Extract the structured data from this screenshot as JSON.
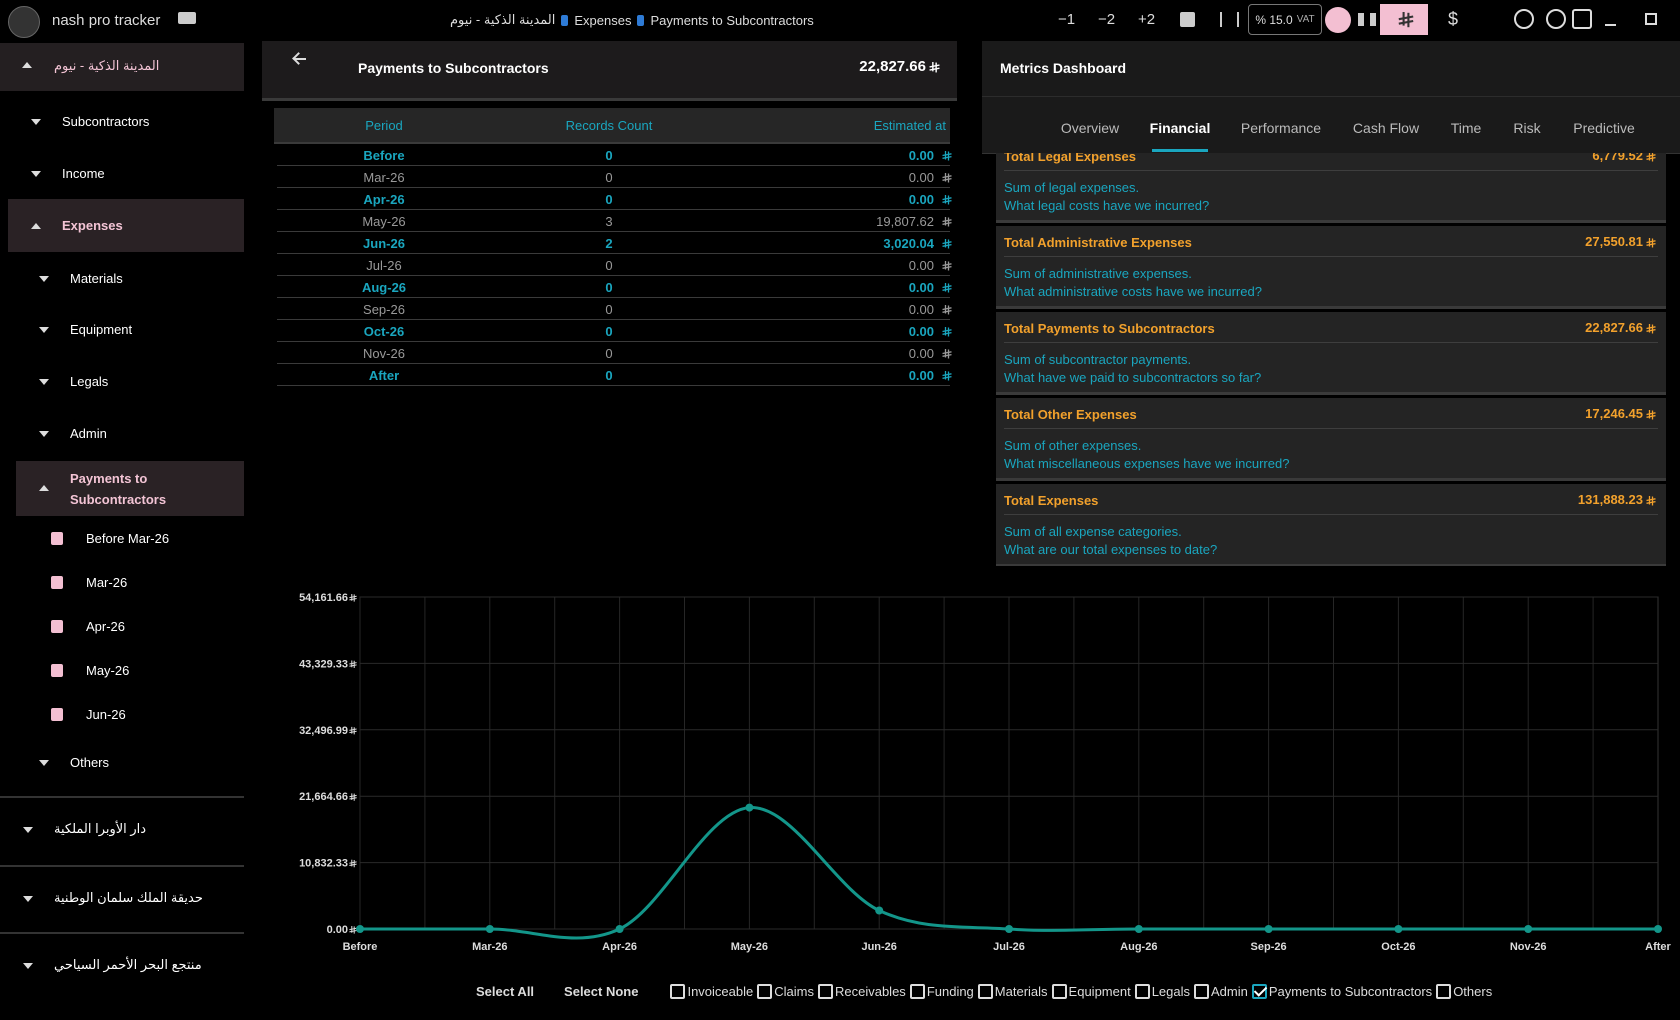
{
  "app": {
    "name": "nash pro tracker",
    "breadcrumb": [
      "المدينة الذكية - نيوم",
      "Expenses",
      "Payments to Subcontractors"
    ],
    "steps": [
      "−1",
      "−2",
      "+2"
    ],
    "vat": "% 15.0",
    "vat_label": "VAT",
    "currency": "$"
  },
  "sidebar": {
    "project": "المدينة الذكية - نيوم",
    "items": [
      "Subcontractors",
      "Income",
      "Expenses",
      "Materials",
      "Equipment",
      "Legals",
      "Admin",
      "Payments to Subcontractors",
      "Before Mar-26",
      "Mar-26",
      "Apr-26",
      "May-26",
      "Jun-26",
      "Others"
    ],
    "projects": [
      "دار الأوبرا الملكية",
      "حديقة الملك سلمان الوطنية",
      "منتجع البحر الأحمر السياحي"
    ]
  },
  "detail": {
    "title": "Payments to Subcontractors",
    "total": "22,827.66",
    "table": {
      "headers": [
        "Period",
        "Records Count",
        "Estimated at"
      ],
      "rows": [
        [
          "Before",
          "0",
          "0.00"
        ],
        [
          "Mar-26",
          "0",
          "0.00"
        ],
        [
          "Apr-26",
          "0",
          "0.00"
        ],
        [
          "May-26",
          "3",
          "19,807.62"
        ],
        [
          "Jun-26",
          "2",
          "3,020.04"
        ],
        [
          "Jul-26",
          "0",
          "0.00"
        ],
        [
          "Aug-26",
          "0",
          "0.00"
        ],
        [
          "Sep-26",
          "0",
          "0.00"
        ],
        [
          "Oct-26",
          "0",
          "0.00"
        ],
        [
          "Nov-26",
          "0",
          "0.00"
        ],
        [
          "After",
          "0",
          "0.00"
        ]
      ]
    }
  },
  "metrics": {
    "title": "Metrics Dashboard",
    "tabs": [
      "Overview",
      "Financial",
      "Performance",
      "Cash Flow",
      "Time",
      "Risk",
      "Predictive"
    ],
    "active_tab": "Financial",
    "cards": [
      {
        "title": "Total Legal Expenses",
        "value": "6,779.52",
        "lines": [
          "Sum of legal expenses.",
          "What legal costs have we incurred?"
        ]
      },
      {
        "title": "Total Administrative Expenses",
        "value": "27,550.81",
        "lines": [
          "Sum of administrative expenses.",
          "What administrative costs have we incurred?"
        ]
      },
      {
        "title": "Total Payments to Subcontractors",
        "value": "22,827.66",
        "lines": [
          "Sum of subcontractor payments.",
          "What have we paid to subcontractors so far?"
        ]
      },
      {
        "title": "Total Other Expenses",
        "value": "17,246.45",
        "lines": [
          "Sum of other expenses.",
          "What miscellaneous expenses have we incurred?"
        ]
      },
      {
        "title": "Total Expenses",
        "value": "131,888.23",
        "lines": [
          "Sum of all expense categories.",
          "What are our total expenses to date?"
        ]
      }
    ]
  },
  "chart": {
    "type": "line",
    "color": "#13968a",
    "categories": [
      "Before",
      "Mar-26",
      "Apr-26",
      "May-26",
      "Jun-26",
      "Jul-26",
      "Aug-26",
      "Sep-26",
      "Oct-26",
      "Nov-26",
      "After"
    ],
    "values": [
      0,
      0,
      0,
      19807.62,
      3020.04,
      0,
      0,
      0,
      0,
      0,
      0
    ],
    "ylim": [
      0,
      54161.66
    ],
    "yticks": [
      {
        "value": 0,
        "label": "0.00"
      },
      {
        "value": 10832.33,
        "label": "10,832.33"
      },
      {
        "value": 21664.66,
        "label": "21,664.66"
      },
      {
        "value": 32496.99,
        "label": "32,496.99"
      },
      {
        "value": 43329.33,
        "label": "43,329.33"
      },
      {
        "value": 54161.66,
        "label": "54,161.66"
      }
    ],
    "grid": true
  },
  "filters": {
    "select_all": "Select All",
    "select_none": "Select None",
    "options": [
      "Invoiceable",
      "Claims",
      "Receivables",
      "Funding",
      "Materials",
      "Equipment",
      "Legals",
      "Admin",
      "Payments to Subcontractors",
      "Others"
    ],
    "checked": [
      "Payments to Subcontractors"
    ]
  }
}
